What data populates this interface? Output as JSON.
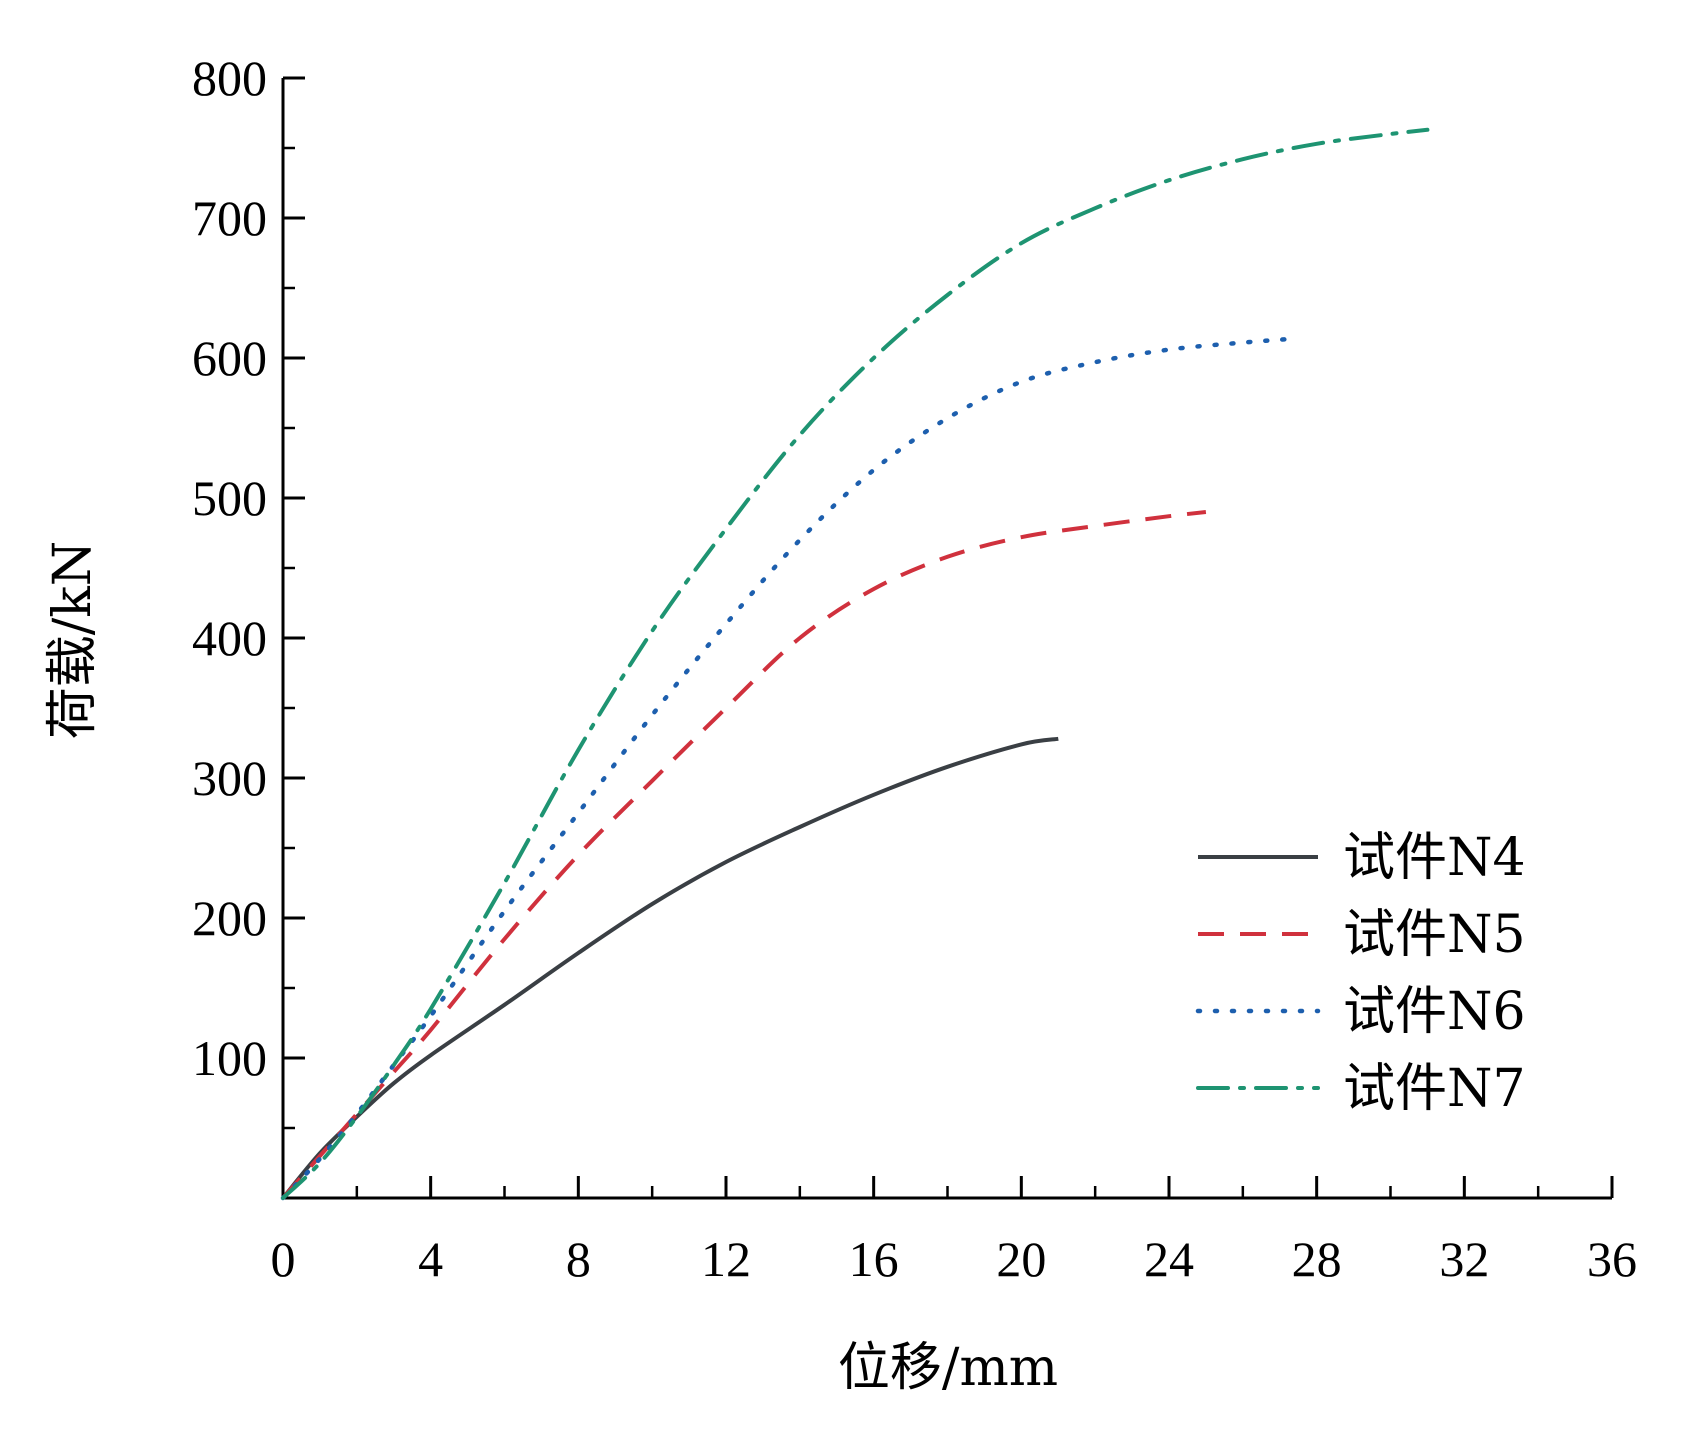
{
  "chart_data": {
    "type": "line",
    "xlabel": "位移/mm",
    "ylabel": "荷载/kN",
    "xlim": [
      0,
      36
    ],
    "ylim": [
      0,
      800
    ],
    "xticks": [
      0,
      4,
      8,
      12,
      16,
      20,
      24,
      28,
      32,
      36
    ],
    "xtick_labels": [
      "0",
      "4",
      "8",
      "12",
      "16",
      "20",
      "24",
      "28",
      "32",
      "36"
    ],
    "yticks": [
      100,
      200,
      300,
      400,
      500,
      600,
      700,
      800
    ],
    "ytick_labels": [
      "100",
      "200",
      "300",
      "400",
      "500",
      "600",
      "700",
      "800"
    ],
    "grid": false,
    "legend_position": "bottom-right",
    "series": [
      {
        "name": "试件N4",
        "color": "#3a3f44",
        "style": "solid",
        "x": [
          0,
          1,
          2,
          3,
          4,
          6,
          8,
          10,
          12,
          14,
          16,
          18,
          20,
          21
        ],
        "y": [
          0,
          32,
          58,
          82,
          102,
          138,
          175,
          210,
          240,
          265,
          288,
          308,
          324,
          328
        ]
      },
      {
        "name": "试件N5",
        "color": "#d0313d",
        "style": "dashed",
        "x": [
          0,
          1,
          2,
          3,
          4,
          6,
          8,
          10,
          12,
          14,
          16,
          18,
          20,
          22,
          24,
          25
        ],
        "y": [
          0,
          30,
          60,
          90,
          120,
          185,
          245,
          298,
          350,
          400,
          435,
          458,
          472,
          480,
          487,
          490
        ]
      },
      {
        "name": "试件N6",
        "color": "#1d5fae",
        "style": "dotted",
        "x": [
          0,
          1,
          2,
          3,
          4,
          6,
          8,
          10,
          12,
          14,
          16,
          18,
          20,
          22,
          24,
          26,
          27.5
        ],
        "y": [
          0,
          28,
          60,
          95,
          130,
          205,
          275,
          345,
          410,
          470,
          520,
          557,
          583,
          597,
          606,
          611,
          614
        ]
      },
      {
        "name": "试件N7",
        "color": "#1e9472",
        "style": "dashdot",
        "x": [
          0,
          1,
          2,
          3,
          4,
          6,
          8,
          10,
          12,
          14,
          16,
          18,
          20,
          22,
          24,
          26,
          28,
          30,
          31
        ],
        "y": [
          0,
          25,
          58,
          95,
          135,
          225,
          320,
          405,
          478,
          545,
          600,
          645,
          682,
          707,
          727,
          742,
          753,
          760,
          763
        ]
      }
    ]
  }
}
